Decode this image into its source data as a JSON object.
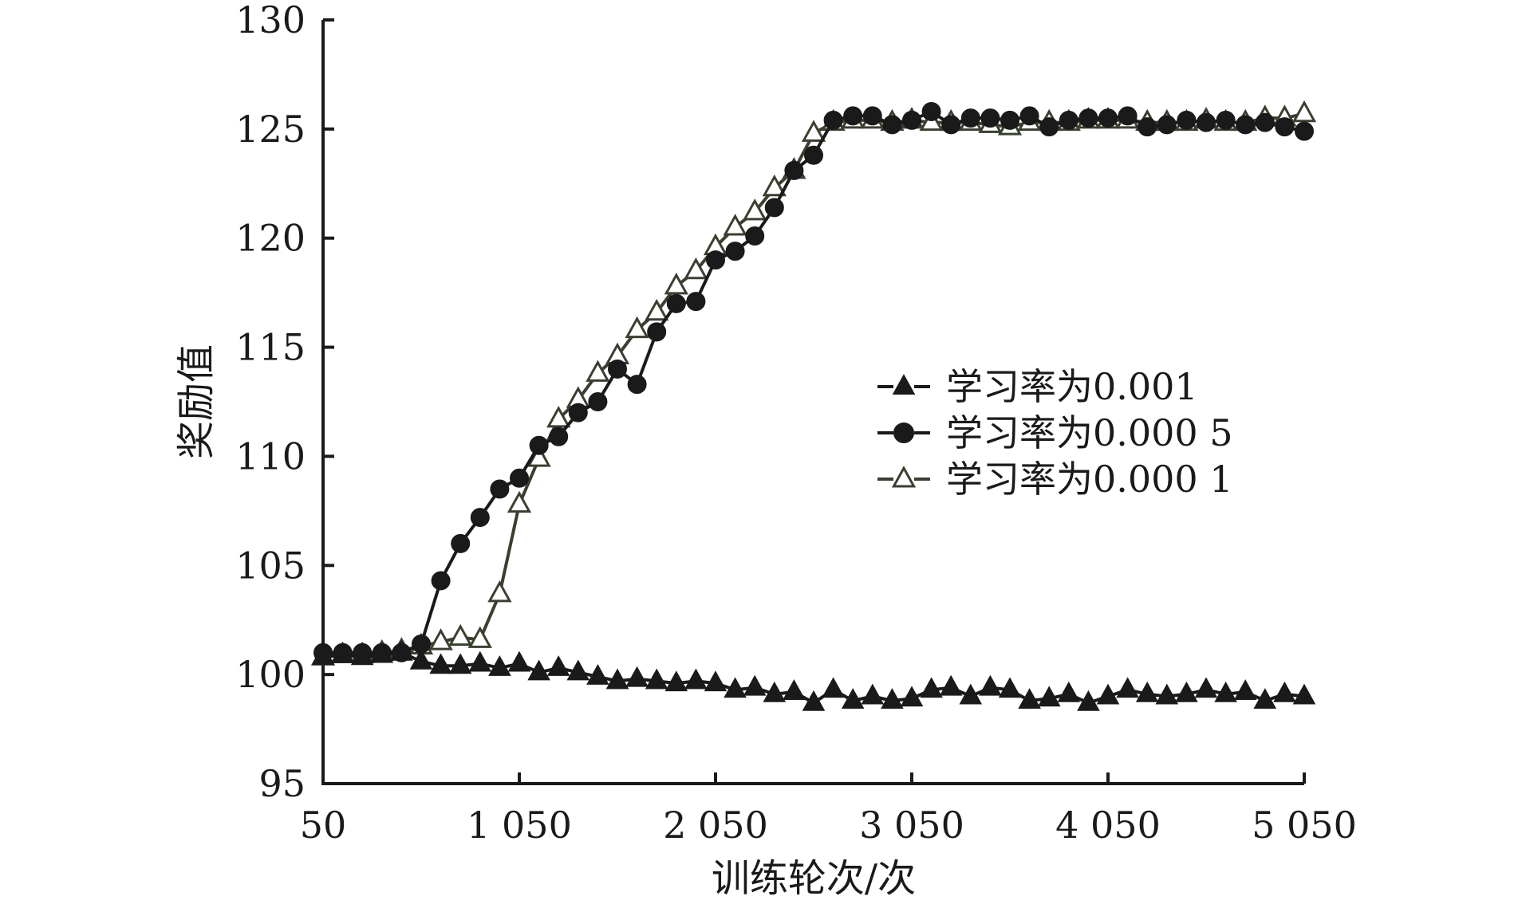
{
  "chart_data": {
    "type": "line",
    "title": "",
    "xlabel": "训练轮次/次",
    "ylabel": "奖励值",
    "xlim": [
      50,
      5050
    ],
    "ylim": [
      95,
      130
    ],
    "x_ticks": [
      50,
      1050,
      2050,
      3050,
      4050,
      5050
    ],
    "x_tick_labels": [
      "50",
      "1 050",
      "2 050",
      "3 050",
      "4 050",
      "5 050"
    ],
    "y_ticks": [
      95,
      100,
      105,
      110,
      115,
      120,
      125,
      130
    ],
    "y_tick_labels": [
      "95",
      "100",
      "105",
      "110",
      "115",
      "120",
      "125",
      "130"
    ],
    "grid": false,
    "legend_position": "right-middle",
    "x": [
      50,
      150,
      250,
      350,
      450,
      550,
      650,
      750,
      850,
      950,
      1050,
      1150,
      1250,
      1350,
      1450,
      1550,
      1650,
      1750,
      1850,
      1950,
      2050,
      2150,
      2250,
      2350,
      2450,
      2550,
      2650,
      2750,
      2850,
      2950,
      3050,
      3150,
      3250,
      3350,
      3450,
      3550,
      3650,
      3750,
      3850,
      3950,
      4050,
      4150,
      4250,
      4350,
      4450,
      4550,
      4650,
      4750,
      4850,
      4950,
      5050
    ],
    "series": [
      {
        "name": "学习率为0.001",
        "marker": "filled-triangle",
        "color": "#1a1a1a",
        "values": [
          100.8,
          100.9,
          100.8,
          100.9,
          101.0,
          100.6,
          100.4,
          100.4,
          100.5,
          100.3,
          100.5,
          100.1,
          100.3,
          100.1,
          99.9,
          99.7,
          99.8,
          99.7,
          99.6,
          99.7,
          99.6,
          99.3,
          99.4,
          99.1,
          99.2,
          98.7,
          99.3,
          98.8,
          99.0,
          98.8,
          98.9,
          99.3,
          99.4,
          99.0,
          99.4,
          99.3,
          98.8,
          98.9,
          99.1,
          98.7,
          99.0,
          99.3,
          99.1,
          99.0,
          99.1,
          99.3,
          99.1,
          99.2,
          98.8,
          99.1,
          99.0
        ]
      },
      {
        "name": "学习率为0.000 5",
        "marker": "filled-circle",
        "color": "#1a1a1a",
        "values": [
          101.0,
          101.0,
          101.0,
          101.0,
          101.0,
          101.4,
          104.3,
          106.0,
          107.2,
          108.5,
          109.0,
          110.5,
          110.9,
          112.0,
          112.5,
          114.0,
          113.3,
          115.7,
          117.0,
          117.1,
          119.0,
          119.4,
          120.1,
          121.4,
          123.1,
          123.8,
          125.4,
          125.6,
          125.6,
          125.2,
          125.4,
          125.8,
          125.2,
          125.5,
          125.5,
          125.4,
          125.6,
          125.1,
          125.4,
          125.5,
          125.5,
          125.6,
          125.1,
          125.2,
          125.4,
          125.3,
          125.4,
          125.2,
          125.3,
          125.1,
          124.9
        ]
      },
      {
        "name": "学习率为0.000 1",
        "marker": "hollow-triangle",
        "color": "#3a4030",
        "values": [
          100.8,
          100.9,
          100.9,
          101.0,
          101.1,
          101.3,
          101.5,
          101.7,
          101.6,
          103.7,
          107.8,
          109.9,
          111.7,
          112.6,
          113.8,
          114.6,
          115.8,
          116.6,
          117.8,
          118.5,
          119.6,
          120.5,
          121.2,
          122.3,
          123.1,
          124.8,
          125.3,
          125.4,
          125.4,
          125.3,
          125.4,
          125.3,
          125.3,
          125.3,
          125.2,
          125.1,
          125.3,
          125.3,
          125.3,
          125.4,
          125.4,
          125.4,
          125.3,
          125.3,
          125.3,
          125.4,
          125.3,
          125.3,
          125.5,
          125.5,
          125.7
        ]
      }
    ]
  }
}
